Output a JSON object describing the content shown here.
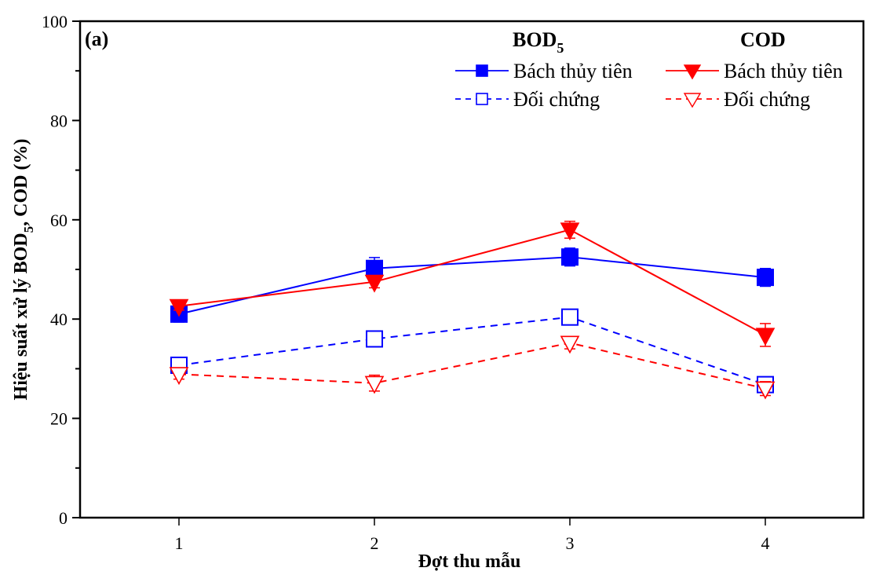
{
  "chart_data": {
    "type": "line",
    "panel_label": "(a)",
    "title": "",
    "xlabel": "Đợt thu mẫu",
    "ylabel_main": "Hiệu suất xử lý BOD",
    "ylabel_sub": "5",
    "ylabel_tail": ", COD (%)",
    "x": [
      1,
      2,
      3,
      4
    ],
    "x_ticks": [
      "1",
      "2",
      "3",
      "4"
    ],
    "xlim": [
      0.5,
      4.5
    ],
    "ylim": [
      0,
      100
    ],
    "y_ticks": [
      "0",
      "20",
      "40",
      "60",
      "80",
      "100"
    ],
    "y_tick_values": [
      0,
      20,
      40,
      60,
      80,
      100
    ],
    "grid": false,
    "legend": {
      "placement": "top-right",
      "groups": [
        {
          "heading_main": "BOD",
          "heading_sub": "5"
        },
        {
          "heading_main": "COD",
          "heading_sub": ""
        }
      ]
    },
    "series": [
      {
        "name": "Bách thủy tiên",
        "group": "BOD5",
        "color": "#0000ff",
        "marker": "square-filled",
        "dash": "solid",
        "values": [
          41.0,
          50.2,
          52.5,
          48.4
        ],
        "errors": [
          1.6,
          2.2,
          1.8,
          1.8
        ]
      },
      {
        "name": "Đối chứng",
        "group": "BOD5",
        "color": "#0000ff",
        "marker": "square-open",
        "dash": "dashed",
        "values": [
          30.7,
          36.0,
          40.4,
          26.8
        ],
        "errors": [
          0.6,
          0.6,
          0.6,
          0.6
        ]
      },
      {
        "name": "Bách thủy tiên",
        "group": "COD",
        "color": "#ff0000",
        "marker": "triangle-down-filled",
        "dash": "solid",
        "values": [
          42.6,
          47.5,
          58.0,
          36.8
        ],
        "errors": [
          0.8,
          1.2,
          1.7,
          2.3
        ]
      },
      {
        "name": "Đối chứng",
        "group": "COD",
        "color": "#ff0000",
        "marker": "triangle-down-open",
        "dash": "dashed",
        "values": [
          28.9,
          27.1,
          35.2,
          26.0
        ],
        "errors": [
          1.0,
          1.6,
          1.2,
          1.4
        ]
      }
    ]
  }
}
